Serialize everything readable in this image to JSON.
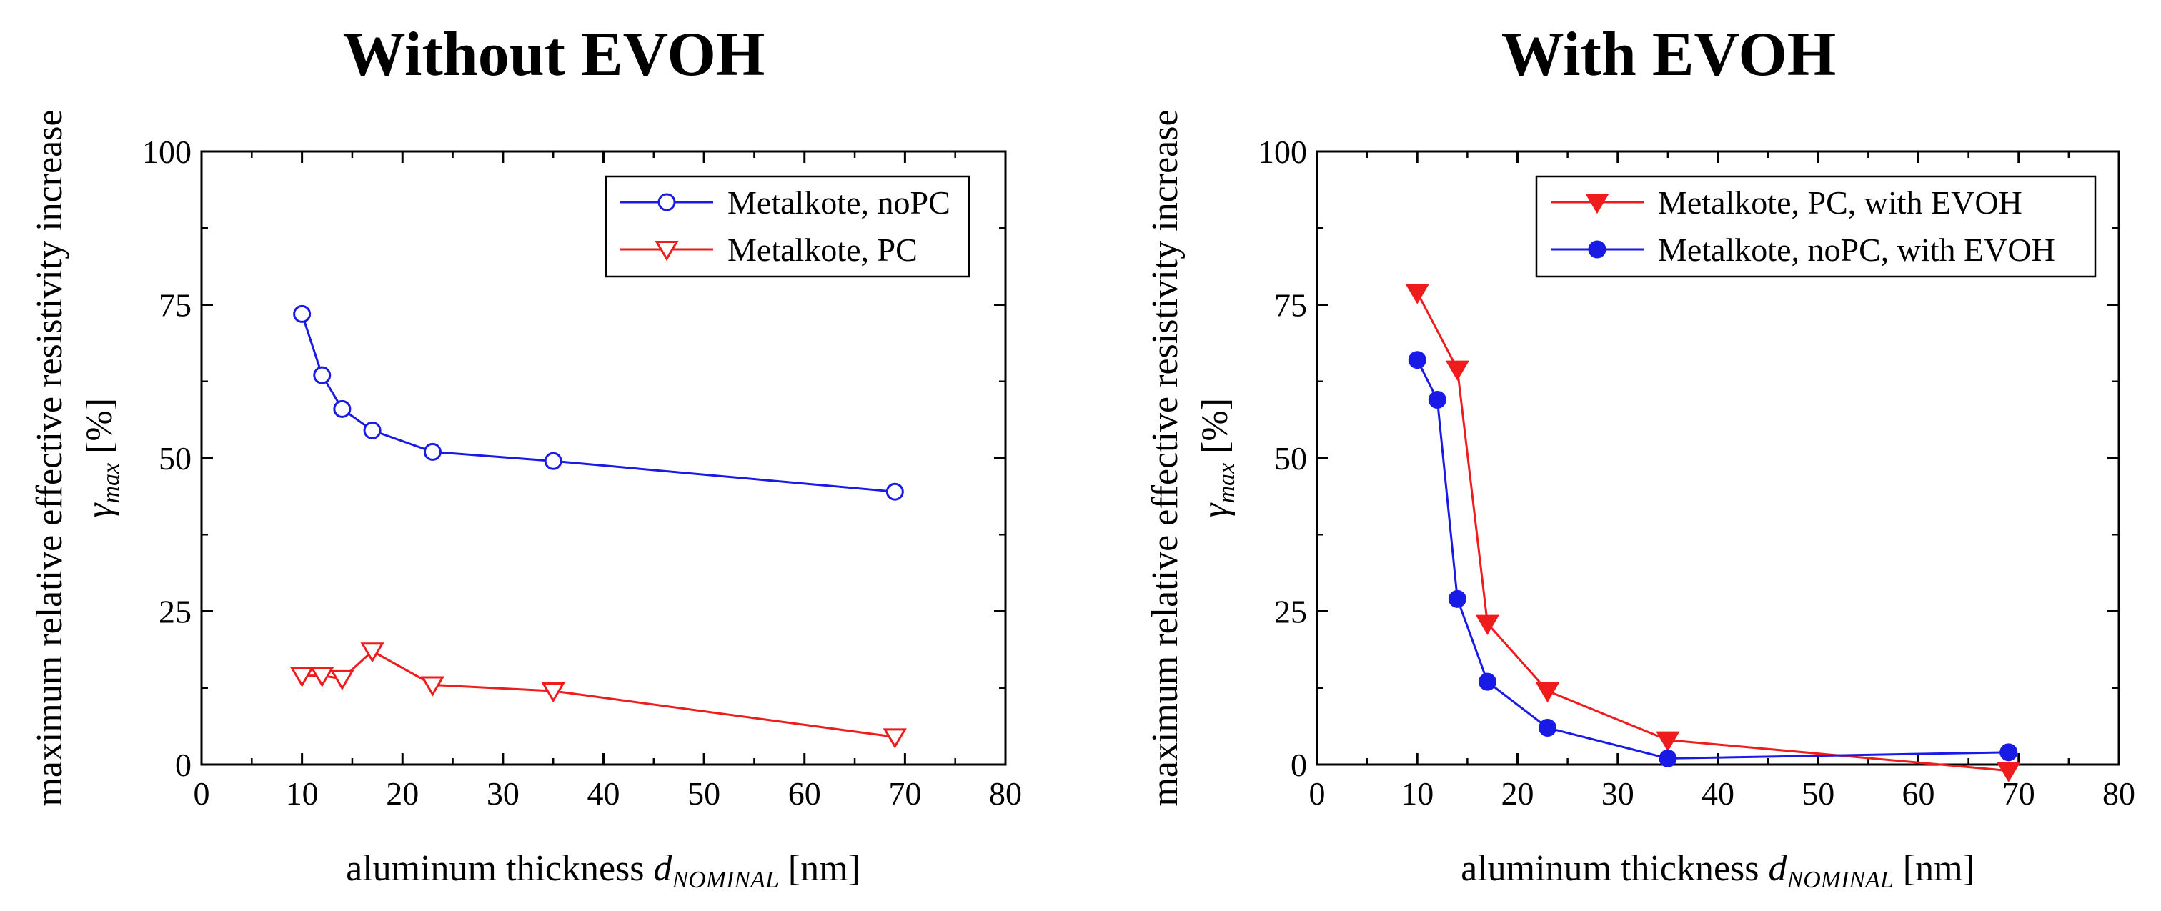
{
  "chart_data": [
    {
      "type": "line",
      "title": "Without EVOH",
      "ylabel": "maximum relative effective resistivity increase",
      "ysymbol": "γ",
      "ysub": "max",
      "yunit": "[%]",
      "xlabel": "aluminum thickness ",
      "xsymbol": "d",
      "xsub": "NOMINAL",
      "xunit": "[nm]",
      "xlim": [
        0,
        80
      ],
      "ylim": [
        0,
        100
      ],
      "xticks": [
        "0",
        "10",
        "20",
        "30",
        "40",
        "50",
        "60",
        "70",
        "80"
      ],
      "yticks": [
        "0",
        "25",
        "50",
        "75",
        "100"
      ],
      "legend_position": "top-right",
      "series": [
        {
          "name": "Metalkote, noPC",
          "color": "#1a1ae6",
          "marker": "circle-open",
          "x": [
            10,
            12,
            14,
            17,
            23,
            35,
            69
          ],
          "y": [
            73.5,
            63.5,
            58,
            54.5,
            51,
            49.5,
            44.5
          ]
        },
        {
          "name": "Metalkote, PC",
          "color": "#ee1c1c",
          "marker": "triangle-down-open",
          "x": [
            10,
            12,
            14,
            17,
            23,
            35,
            69
          ],
          "y": [
            14.5,
            14.5,
            14,
            18.5,
            13,
            12,
            4.5
          ]
        }
      ]
    },
    {
      "type": "line",
      "title": "With EVOH",
      "ylabel": "maximum relative effective resistivity increase",
      "ysymbol": "γ",
      "ysub": "max",
      "yunit": "[%]",
      "xlabel": "aluminum thickness ",
      "xsymbol": "d",
      "xsub": "NOMINAL",
      "xunit": "[nm]",
      "xlim": [
        0,
        80
      ],
      "ylim": [
        0,
        100
      ],
      "xticks": [
        "0",
        "10",
        "20",
        "30",
        "40",
        "50",
        "60",
        "70",
        "80"
      ],
      "yticks": [
        "0",
        "25",
        "50",
        "75",
        "100"
      ],
      "legend_position": "top-right",
      "series": [
        {
          "name": "Metalkote, PC, with EVOH",
          "color": "#ee1c1c",
          "marker": "triangle-down-filled",
          "x": [
            10,
            14,
            17,
            23,
            35,
            69
          ],
          "y": [
            77,
            64.5,
            23,
            12,
            4,
            -1
          ]
        },
        {
          "name": "Metalkote, noPC, with EVOH",
          "color": "#1a1ae6",
          "marker": "circle-filled",
          "x": [
            10,
            12,
            14,
            17,
            23,
            35,
            69
          ],
          "y": [
            66,
            59.5,
            27,
            13.5,
            6,
            1,
            2
          ]
        }
      ]
    }
  ]
}
